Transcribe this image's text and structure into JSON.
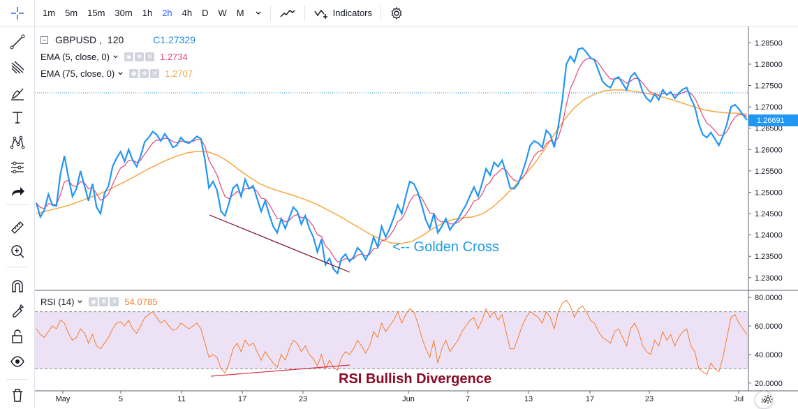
{
  "toolbar": {
    "timeframes": [
      "1m",
      "5m",
      "15m",
      "30m",
      "1h",
      "2h",
      "4h",
      "D",
      "W",
      "M"
    ],
    "active_timeframe": "2h",
    "indicators_label": "Indicators"
  },
  "main_pane": {
    "symbol": "GBPUSD",
    "interval": "120",
    "close_label": "C",
    "close_value": "1.27329",
    "ema_fast": {
      "label": "EMA (5, close, 0)",
      "value": "1.2734",
      "color": "#e0457b"
    },
    "ema_slow": {
      "label": "EMA (75, close, 0)",
      "value": "1.2707",
      "color": "#f7a740"
    },
    "price_color": "#2196f3",
    "last_price": "1.26691",
    "annotation": "<-- Golden Cross",
    "annotation_color": "#1e9be0"
  },
  "rsi_pane": {
    "label": "RSI (14)",
    "value": "54.0785",
    "color": "#f57c2c",
    "annotation": "RSI Bullish Divergence",
    "annotation_color": "#8b0a24"
  },
  "price_axis": [
    "1.28500",
    "1.28000",
    "1.27500",
    "1.27000",
    "1.26500",
    "1.26000",
    "1.25500",
    "1.25000",
    "1.24500",
    "1.24000",
    "1.23500",
    "1.23000"
  ],
  "rsi_axis": [
    "80.0000",
    "60.0000",
    "40.0000",
    "20.0000"
  ],
  "time_axis": [
    "May",
    "5",
    "11",
    "17",
    "23",
    "Jun",
    "7",
    "13",
    "17",
    "23",
    "Jul"
  ],
  "chart_data": {
    "type": "line",
    "title": "GBPUSD, 120",
    "ylim": [
      1.228,
      1.288
    ],
    "rsi_ylim": [
      16,
      83
    ],
    "rsi_levels": [
      70,
      30
    ],
    "series": [
      {
        "name": "GBPUSD",
        "values": [
          1.2475,
          1.2442,
          1.2458,
          1.2495,
          1.247,
          1.2468,
          1.2542,
          1.2585,
          1.2535,
          1.249,
          1.2508,
          1.255,
          1.2515,
          1.248,
          1.252,
          1.2465,
          1.245,
          1.2498,
          1.2515,
          1.256,
          1.258,
          1.2595,
          1.2572,
          1.26,
          1.2575,
          1.256,
          1.2585,
          1.2618,
          1.2628,
          1.2642,
          1.2635,
          1.262,
          1.2637,
          1.2623,
          1.2605,
          1.261,
          1.2628,
          1.2618,
          1.2615,
          1.2622,
          1.2631,
          1.2625,
          1.2575,
          1.251,
          1.2525,
          1.2505,
          1.2455,
          1.2445,
          1.2475,
          1.251,
          1.2518,
          1.249,
          1.253,
          1.2508,
          1.2515,
          1.2485,
          1.2455,
          1.248,
          1.2448,
          1.242,
          1.2405,
          1.2438,
          1.2415,
          1.244,
          1.2465,
          1.2455,
          1.2425,
          1.2445,
          1.2415,
          1.2395,
          1.236,
          1.239,
          1.233,
          1.2345,
          1.232,
          1.231,
          1.2345,
          1.2355,
          1.2338,
          1.2348,
          1.237,
          1.236,
          1.2342,
          1.236,
          1.2395,
          1.2372,
          1.242,
          1.2395,
          1.2415,
          1.244,
          1.247,
          1.245,
          1.249,
          1.2525,
          1.252,
          1.25,
          1.247,
          1.2435,
          1.2415,
          1.245,
          1.2405,
          1.242,
          1.2438,
          1.2412,
          1.2425,
          1.2436,
          1.2454,
          1.247,
          1.2492,
          1.2512,
          1.249,
          1.252,
          1.2555,
          1.254,
          1.257,
          1.256,
          1.2575,
          1.2545,
          1.251,
          1.2508,
          1.252,
          1.2545,
          1.2575,
          1.261,
          1.262,
          1.2615,
          1.2605,
          1.2645,
          1.2635,
          1.2605,
          1.2655,
          1.2715,
          1.28,
          1.2818,
          1.2805,
          1.2835,
          1.2838,
          1.2828,
          1.2815,
          1.281,
          1.2785,
          1.276,
          1.275,
          1.2745,
          1.2765,
          1.277,
          1.2755,
          1.274,
          1.277,
          1.278,
          1.2765,
          1.2735,
          1.272,
          1.2712,
          1.273,
          1.2716,
          1.274,
          1.2728,
          1.2735,
          1.272,
          1.2732,
          1.2741,
          1.2745,
          1.272,
          1.27,
          1.266,
          1.2635,
          1.2628,
          1.264,
          1.2625,
          1.261,
          1.2632,
          1.266,
          1.27,
          1.2705,
          1.2695,
          1.2681,
          1.2669
        ]
      },
      {
        "name": "EMA (75, close, 0)",
        "values": [
          1.245,
          1.2456,
          1.2462,
          1.2468,
          1.2476,
          1.2485,
          1.2494,
          1.2504,
          1.2516,
          1.2528,
          1.2541,
          1.2554,
          1.2566,
          1.2577,
          1.2586,
          1.2593,
          1.2596,
          1.2594,
          1.2585,
          1.257,
          1.2552,
          1.2535,
          1.252,
          1.251,
          1.2502,
          1.2495,
          1.2487,
          1.2478,
          1.2467,
          1.2455,
          1.2442,
          1.2428,
          1.2414,
          1.24,
          1.2389,
          1.2381,
          1.238,
          1.2385,
          1.2398,
          1.2414,
          1.2427,
          1.2436,
          1.244,
          1.2442,
          1.245,
          1.2466,
          1.2488,
          1.2512,
          1.2538,
          1.2565,
          1.2598,
          1.2635,
          1.267,
          1.2698,
          1.2718,
          1.273,
          1.2738,
          1.274,
          1.2739,
          1.2736,
          1.2732,
          1.2727,
          1.2721,
          1.2714,
          1.2706,
          1.2698,
          1.2692,
          1.2688,
          1.2686,
          1.2685,
          1.2683
        ]
      }
    ],
    "rsi": [
      58,
      54,
      52,
      56,
      60,
      58,
      64,
      62,
      55,
      50,
      52,
      58,
      55,
      48,
      54,
      46,
      44,
      48,
      52,
      58,
      62,
      63,
      60,
      64,
      58,
      55,
      60,
      66,
      68,
      70,
      66,
      62,
      64,
      60,
      57,
      58,
      62,
      60,
      58,
      60,
      62,
      58,
      48,
      38,
      40,
      38,
      30,
      27,
      34,
      44,
      48,
      42,
      50,
      46,
      48,
      42,
      36,
      42,
      38,
      34,
      31,
      40,
      36,
      44,
      50,
      48,
      42,
      46,
      40,
      37,
      32,
      40,
      30,
      36,
      31,
      29,
      38,
      42,
      40,
      44,
      50,
      46,
      41,
      46,
      56,
      52,
      62,
      56,
      60,
      64,
      70,
      62,
      68,
      72,
      70,
      62,
      52,
      44,
      38,
      50,
      34,
      44,
      50,
      42,
      46,
      50,
      56,
      60,
      64,
      66,
      58,
      64,
      72,
      66,
      70,
      64,
      68,
      56,
      44,
      44,
      52,
      60,
      66,
      70,
      68,
      66,
      62,
      70,
      66,
      58,
      70,
      76,
      78,
      74,
      66,
      72,
      74,
      70,
      64,
      62,
      56,
      52,
      50,
      48,
      56,
      58,
      52,
      46,
      58,
      62,
      56,
      46,
      42,
      40,
      50,
      46,
      56,
      50,
      54,
      46,
      52,
      56,
      58,
      46,
      42,
      30,
      28,
      26,
      34,
      30,
      28,
      38,
      52,
      66,
      68,
      62,
      58,
      54
    ]
  }
}
